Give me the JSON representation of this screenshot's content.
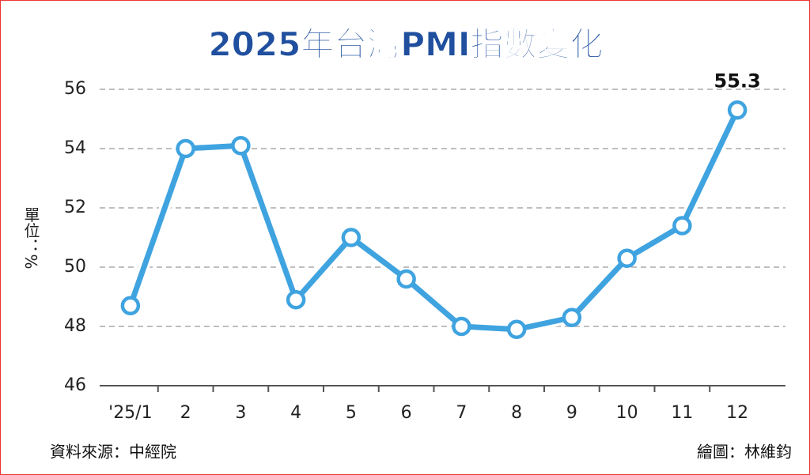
{
  "chart_data": {
    "type": "line",
    "title": "2025年台灣PMI指數變化",
    "y_label": "單位：%",
    "categories": [
      "'25/1",
      "2",
      "3",
      "4",
      "5",
      "6",
      "7",
      "8",
      "9",
      "10",
      "11",
      "12"
    ],
    "series": [
      {
        "name": "PMI",
        "color": "#3fa3e0",
        "values": [
          48.7,
          54.0,
          54.1,
          48.9,
          51.0,
          49.6,
          48.0,
          47.9,
          48.3,
          50.3,
          51.4,
          55.3
        ],
        "value_labels": [
          null,
          null,
          null,
          null,
          null,
          null,
          null,
          null,
          null,
          null,
          null,
          "55.3"
        ]
      }
    ],
    "ylim": [
      46,
      56
    ],
    "yticks": [
      46,
      48,
      50,
      52,
      54,
      56
    ],
    "grid": true,
    "source": "資料來源：中經院",
    "credit": "繪圖：林維鈞"
  }
}
